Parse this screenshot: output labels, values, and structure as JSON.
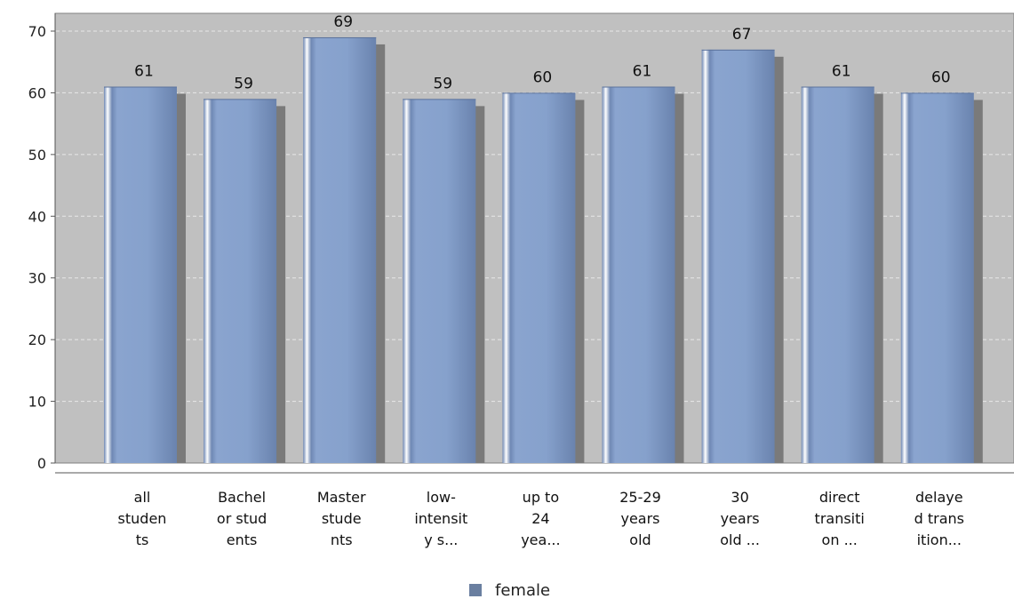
{
  "chart_data": {
    "type": "bar",
    "categories": [
      "all studen ts",
      "Bachel or stud ents",
      "Master stude nts",
      "low- intensit y s...",
      "up to 24 yea...",
      "25-29 years old",
      "30 years old ...",
      "direct transiti on ...",
      "delaye d trans ition..."
    ],
    "category_lines": [
      [
        "all",
        "studen",
        "ts"
      ],
      [
        "Bachel",
        "or stud",
        "ents"
      ],
      [
        "Master",
        "stude",
        "nts"
      ],
      [
        "low-",
        "intensit",
        "y s..."
      ],
      [
        "up to",
        "24",
        "yea..."
      ],
      [
        "25-29",
        "years",
        "old"
      ],
      [
        "30",
        "years",
        "old ..."
      ],
      [
        "direct",
        "transiti",
        "on ..."
      ],
      [
        "delaye",
        "d trans",
        "ition..."
      ]
    ],
    "series": [
      {
        "name": "female",
        "values": [
          61,
          59,
          69,
          59,
          60,
          61,
          67,
          61,
          60
        ]
      }
    ],
    "y_ticks": [
      "0",
      "10",
      "20",
      "30",
      "40",
      "50",
      "60",
      "70"
    ],
    "ylim": [
      0,
      70
    ],
    "grid": true,
    "legend_position": "bottom-center",
    "colors": {
      "plot_bg": "#c0c0c0",
      "bar": "#7f9bc7",
      "bar_dark": "#5f7aa6",
      "shadow": "#7a7a7a",
      "legend_swatch": "#6a7fa0",
      "grid": "#e8e8e8"
    }
  }
}
